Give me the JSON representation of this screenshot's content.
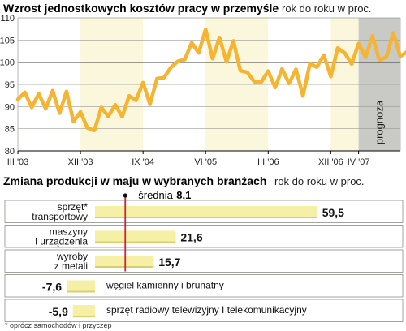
{
  "chart_data": [
    {
      "type": "line",
      "title": "Wzrost jednostkowych kosztów pracy w przemyśle",
      "subtitle": "rok do roku w proc.",
      "ylim": [
        80,
        110
      ],
      "yticks": [
        80,
        85,
        90,
        95,
        100,
        105,
        110
      ],
      "x_ticks": [
        {
          "label": "III '03",
          "index": 0
        },
        {
          "label": "XII '03",
          "index": 9
        },
        {
          "label": "IX '04",
          "index": 18
        },
        {
          "label": "VI '05",
          "index": 27
        },
        {
          "label": "III '06",
          "index": 36
        },
        {
          "label": "XII '06",
          "index": 45
        },
        {
          "label": "IV '07",
          "index": 49
        }
      ],
      "x_end_index": 55,
      "forecast_start_index": 49,
      "forecast_label": "prognoza",
      "grid": true,
      "color": "#f5b431",
      "values": [
        91.6,
        93.2,
        89.8,
        92.9,
        89.5,
        93.6,
        88.5,
        93.4,
        86.6,
        88.8,
        85.2,
        84.6,
        89.8,
        87.8,
        90.4,
        87.7,
        92.4,
        91.4,
        95.4,
        90.5,
        96.3,
        96.5,
        98.8,
        100.2,
        100.6,
        104.4,
        102.1,
        107.4,
        100.8,
        105.6,
        100.1,
        104.8,
        98.1,
        97.7,
        95.6,
        95.5,
        98.0,
        94.3,
        98.5,
        95.2,
        98.4,
        92.4,
        99.7,
        98.9,
        101.6,
        96.8,
        103.2,
        102.1,
        99.6,
        104.2,
        101.1,
        105.9,
        100.4,
        101.2,
        106.6,
        101.3,
        102.4,
        102.2
      ]
    },
    {
      "type": "bar",
      "orientation": "horizontal",
      "title": "Zmiana produkcji w maju w wybranych branżach",
      "subtitle": "rok do roku w proc.",
      "categories": [
        "sprzęt* transportowy",
        "maszyny i urządzenia",
        "wyroby z metali",
        "węgiel kamienny i brunatny",
        "sprzęt radiowy telewizyjny I telekomunikacyjny"
      ],
      "category_lines": [
        [
          "sprzęt*",
          "transportowy"
        ],
        [
          "maszyny",
          "i urządzenia"
        ],
        [
          "wyroby",
          "z metali"
        ],
        [
          "węgiel kamienny i brunatny"
        ],
        [
          "sprzęt radiowy telewizyjny I telekomunikacyjny"
        ]
      ],
      "values": [
        59.5,
        21.6,
        15.7,
        -7.6,
        -5.9
      ],
      "value_labels": [
        "59,5",
        "21,6",
        "15,7",
        "-7,6",
        "-5,9"
      ],
      "reference": {
        "label": "średnia",
        "value_label": "8,1",
        "value": 8.1
      },
      "footnote": "* oprócz samochodów i przyczep",
      "bar_color": "#f5f0a6",
      "bar_shade": "#d7cf6c",
      "reference_color": "#c4263a"
    }
  ]
}
